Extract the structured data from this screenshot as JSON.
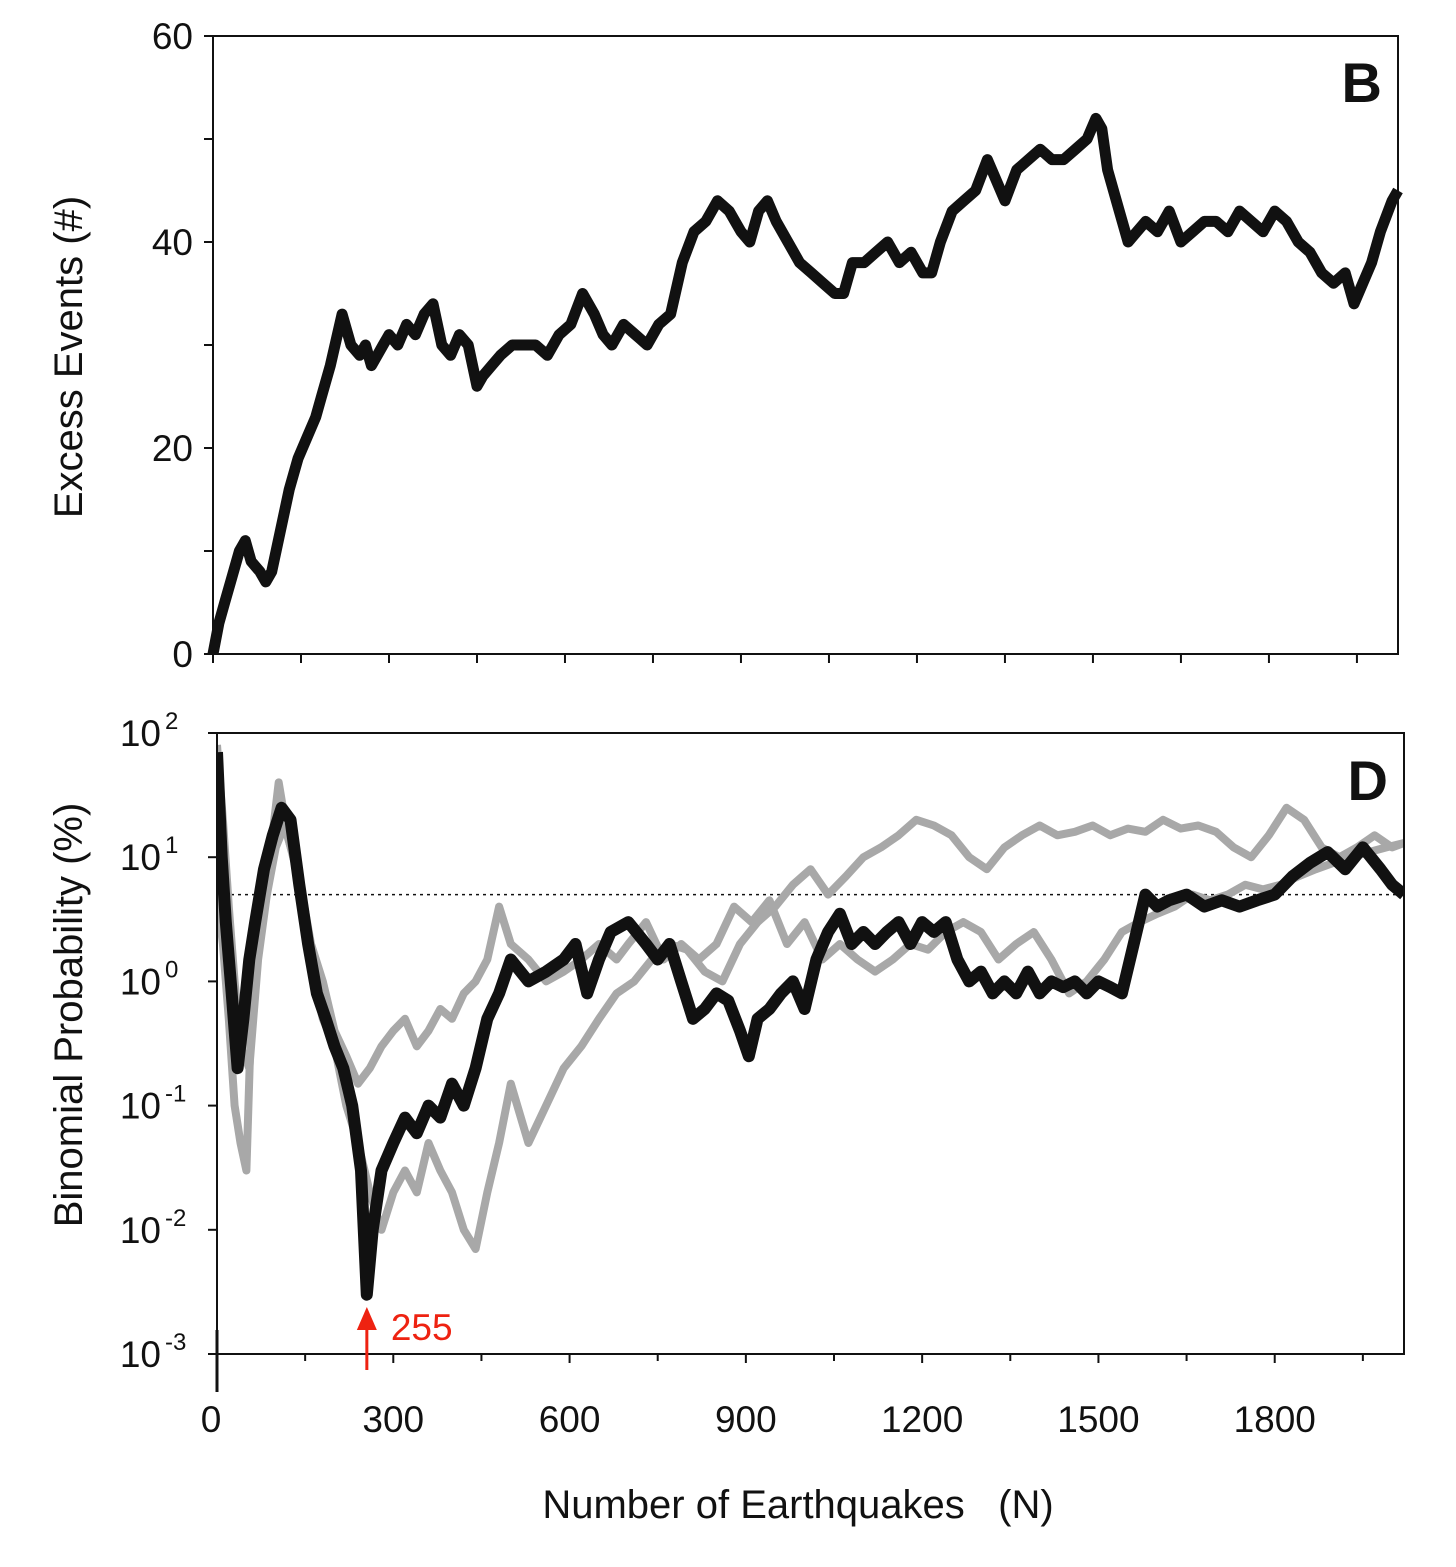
{
  "chart_data": [
    {
      "panel": "B",
      "type": "line",
      "ylabel": "Excess Events (#)",
      "xlim": [
        0,
        2020
      ],
      "ylim": [
        0,
        60
      ],
      "yticks_major": [
        0,
        20,
        40,
        60
      ],
      "yticks_minor": [
        10,
        30,
        50
      ],
      "xticks": [
        0,
        150,
        300,
        450,
        600,
        750,
        900,
        1050,
        1200,
        1350,
        1500,
        1650,
        1800,
        1950
      ],
      "series": [
        {
          "color": "#111111",
          "x": [
            0,
            10,
            20,
            30,
            45,
            55,
            65,
            80,
            90,
            100,
            115,
            130,
            145,
            160,
            175,
            185,
            200,
            220,
            235,
            250,
            260,
            270,
            280,
            290,
            300,
            315,
            330,
            345,
            360,
            375,
            390,
            405,
            420,
            435,
            450,
            460,
            475,
            490,
            510,
            530,
            550,
            570,
            590,
            610,
            630,
            650,
            665,
            680,
            700,
            720,
            740,
            760,
            780,
            800,
            820,
            840,
            860,
            880,
            900,
            915,
            930,
            945,
            960,
            980,
            1000,
            1020,
            1040,
            1060,
            1075,
            1090,
            1110,
            1130,
            1150,
            1170,
            1190,
            1210,
            1225,
            1240,
            1260,
            1280,
            1300,
            1320,
            1335,
            1350,
            1370,
            1390,
            1410,
            1430,
            1450,
            1470,
            1490,
            1505,
            1515,
            1525,
            1545,
            1560,
            1575,
            1590,
            1610,
            1630,
            1650,
            1670,
            1690,
            1710,
            1730,
            1750,
            1770,
            1790,
            1810,
            1830,
            1850,
            1870,
            1890,
            1910,
            1930,
            1945,
            1960,
            1975,
            1990,
            2010,
            2020
          ],
          "y": [
            0,
            3,
            5,
            7,
            10,
            11,
            9,
            8,
            7,
            8,
            12,
            16,
            19,
            21,
            23,
            25,
            28,
            33,
            30,
            29,
            30,
            28,
            29,
            30,
            31,
            30,
            32,
            31,
            33,
            34,
            30,
            29,
            31,
            30,
            26,
            27,
            28,
            29,
            30,
            30,
            30,
            29,
            31,
            32,
            35,
            33,
            31,
            30,
            32,
            31,
            30,
            32,
            33,
            38,
            41,
            42,
            44,
            43,
            41,
            40,
            43,
            44,
            42,
            40,
            38,
            37,
            36,
            35,
            35,
            38,
            38,
            39,
            40,
            38,
            39,
            37,
            37,
            40,
            43,
            44,
            45,
            48,
            46,
            44,
            47,
            48,
            49,
            48,
            48,
            49,
            50,
            52,
            51,
            47,
            43,
            40,
            41,
            42,
            41,
            43,
            40,
            41,
            42,
            42,
            41,
            43,
            42,
            41,
            43,
            42,
            40,
            39,
            37,
            36,
            37,
            34,
            36,
            38,
            41,
            44,
            45
          ]
        }
      ]
    },
    {
      "panel": "D",
      "type": "line",
      "ylabel": "Binomial Probability (%)",
      "xlabel": "Number of Earthquakes   (N)",
      "xlim": [
        0,
        2020
      ],
      "yscale": "log",
      "ylim": [
        0.001,
        100
      ],
      "yticks": [
        {
          "base": "10",
          "exp": "-3"
        },
        {
          "base": "10",
          "exp": "-2"
        },
        {
          "base": "10",
          "exp": "-1"
        },
        {
          "base": "10",
          "exp": "0"
        },
        {
          "base": "10",
          "exp": "1"
        },
        {
          "base": "10",
          "exp": "2"
        }
      ],
      "xticks": [
        0,
        300,
        600,
        900,
        1200,
        1500,
        1800
      ],
      "xticks_minor": [
        150,
        450,
        750,
        1050,
        1350,
        1650,
        1950
      ],
      "xtick_labels": [
        "0",
        "300",
        "600",
        "900",
        "1200",
        "1500",
        "1800"
      ],
      "reference_line": {
        "y": 5,
        "style": "dotted"
      },
      "annotation": {
        "x": 255,
        "text": "255",
        "color": "#ee2211"
      },
      "series": [
        {
          "color": "#111111",
          "x": [
            0,
            8,
            15,
            25,
            35,
            45,
            55,
            65,
            80,
            95,
            110,
            125,
            140,
            155,
            170,
            185,
            200,
            215,
            230,
            245,
            255,
            265,
            280,
            300,
            320,
            340,
            360,
            380,
            400,
            420,
            440,
            460,
            480,
            500,
            530,
            560,
            590,
            610,
            630,
            650,
            670,
            700,
            730,
            750,
            770,
            790,
            810,
            830,
            850,
            870,
            890,
            905,
            920,
            940,
            960,
            980,
            1000,
            1020,
            1040,
            1060,
            1080,
            1100,
            1120,
            1140,
            1160,
            1180,
            1200,
            1220,
            1240,
            1260,
            1280,
            1300,
            1320,
            1340,
            1360,
            1380,
            1400,
            1420,
            1440,
            1460,
            1480,
            1500,
            1520,
            1540,
            1560,
            1580,
            1600,
            1620,
            1650,
            1680,
            1710,
            1740,
            1770,
            1800,
            1830,
            1860,
            1890,
            1920,
            1950,
            1980,
            2000,
            2020
          ],
          "y": [
            70,
            10,
            3,
            0.8,
            0.2,
            0.5,
            1.5,
            3,
            8,
            15,
            25,
            20,
            6,
            2,
            0.8,
            0.5,
            0.3,
            0.2,
            0.1,
            0.03,
            0.003,
            0.01,
            0.03,
            0.05,
            0.08,
            0.06,
            0.1,
            0.08,
            0.15,
            0.1,
            0.2,
            0.5,
            0.8,
            1.5,
            1.0,
            1.2,
            1.5,
            2.0,
            0.8,
            1.5,
            2.5,
            3.0,
            2.0,
            1.5,
            2.0,
            1.0,
            0.5,
            0.6,
            0.8,
            0.7,
            0.4,
            0.25,
            0.5,
            0.6,
            0.8,
            1.0,
            0.6,
            1.5,
            2.5,
            3.5,
            2.0,
            2.5,
            2.0,
            2.5,
            3.0,
            2.0,
            3.0,
            2.5,
            3.0,
            1.5,
            1.0,
            1.2,
            0.8,
            1.0,
            0.8,
            1.2,
            0.8,
            1.0,
            0.9,
            1.0,
            0.8,
            1.0,
            0.9,
            0.8,
            2.0,
            5.0,
            4.0,
            4.5,
            5.0,
            4.0,
            4.5,
            4.0,
            4.5,
            5.0,
            7.0,
            9.0,
            11.0,
            8.0,
            12.0,
            8.0,
            6.0,
            5.0
          ]
        },
        {
          "color": "#a8a8a8",
          "x": [
            0,
            10,
            20,
            30,
            40,
            50,
            60,
            75,
            90,
            105,
            120,
            135,
            150,
            165,
            180,
            200,
            220,
            240,
            260,
            280,
            300,
            320,
            340,
            360,
            380,
            400,
            420,
            440,
            460,
            480,
            500,
            530,
            560,
            590,
            620,
            650,
            680,
            710,
            740,
            770,
            800,
            830,
            860,
            890,
            920,
            950,
            980,
            1010,
            1040,
            1070,
            1100,
            1130,
            1160,
            1190,
            1220,
            1250,
            1280,
            1310,
            1340,
            1370,
            1400,
            1430,
            1460,
            1490,
            1520,
            1550,
            1580,
            1610,
            1640,
            1670,
            1700,
            1730,
            1760,
            1790,
            1820,
            1850,
            1880,
            1910,
            1940,
            1970,
            2000,
            2020
          ],
          "y": [
            5,
            2,
            0.5,
            0.1,
            0.05,
            0.03,
            1,
            3,
            10,
            40,
            15,
            8,
            3,
            1,
            0.5,
            0.3,
            0.1,
            0.05,
            0.02,
            0.01,
            0.02,
            0.03,
            0.02,
            0.05,
            0.03,
            0.02,
            0.01,
            0.007,
            0.02,
            0.05,
            0.15,
            0.05,
            0.1,
            0.2,
            0.3,
            0.5,
            0.8,
            1.0,
            1.5,
            2.0,
            1.8,
            1.2,
            1.0,
            2.0,
            3.0,
            4.0,
            6.0,
            8.0,
            5.0,
            7.0,
            10.0,
            12.0,
            15.0,
            20.0,
            18.0,
            15.0,
            10.0,
            8.0,
            12.0,
            15.0,
            18.0,
            15.0,
            16.0,
            18.0,
            15.0,
            17.0,
            16.0,
            20.0,
            17.0,
            18.0,
            16.0,
            12.0,
            10.0,
            15.0,
            25.0,
            20.0,
            12.0,
            10.0,
            12.0,
            15.0,
            12.0,
            13.0
          ]
        },
        {
          "color": "#a8a8a8",
          "x": [
            0,
            10,
            20,
            30,
            40,
            55,
            70,
            85,
            100,
            115,
            130,
            145,
            160,
            180,
            200,
            220,
            240,
            260,
            280,
            300,
            320,
            340,
            360,
            380,
            400,
            420,
            440,
            460,
            480,
            500,
            530,
            560,
            590,
            620,
            650,
            680,
            700,
            730,
            760,
            790,
            820,
            850,
            880,
            910,
            940,
            970,
            1000,
            1030,
            1060,
            1090,
            1120,
            1150,
            1180,
            1210,
            1240,
            1270,
            1300,
            1330,
            1360,
            1390,
            1420,
            1450,
            1480,
            1510,
            1540,
            1570,
            1600,
            1630,
            1660,
            1690,
            1720,
            1750,
            1780,
            1810,
            1840,
            1870,
            1900,
            1930,
            1960,
            1990,
            2020
          ],
          "y": [
            80,
            20,
            4,
            1,
            0.3,
            0.2,
            1.5,
            5,
            12,
            18,
            10,
            5,
            2,
            1,
            0.4,
            0.25,
            0.15,
            0.2,
            0.3,
            0.4,
            0.5,
            0.3,
            0.4,
            0.6,
            0.5,
            0.8,
            1,
            1.5,
            4,
            2,
            1.5,
            1,
            1.2,
            1.5,
            2,
            1.5,
            2,
            3,
            1.5,
            2,
            1.5,
            2,
            4,
            3,
            4.5,
            2,
            3,
            1.5,
            2,
            1.5,
            1.2,
            1.5,
            2,
            1.8,
            2.5,
            3,
            2.5,
            1.5,
            2,
            2.5,
            1.5,
            0.8,
            1,
            1.5,
            2.5,
            3,
            3.5,
            4,
            5,
            4.5,
            5,
            6,
            5.5,
            6,
            7,
            8,
            9,
            10,
            11,
            12,
            13
          ]
        }
      ]
    }
  ]
}
